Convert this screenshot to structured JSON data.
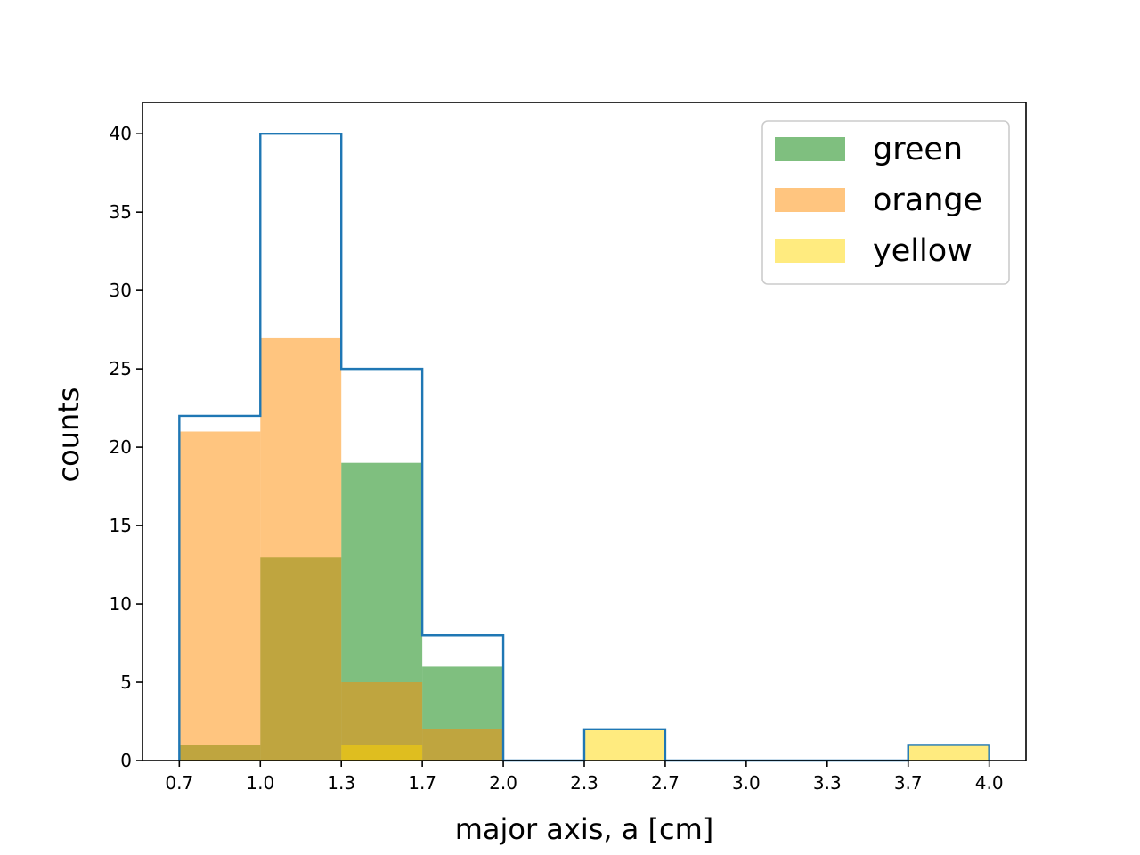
{
  "chart_data": {
    "type": "bar",
    "xlabel": "major axis, a [cm]",
    "ylabel": "counts",
    "xlim": [
      0.55,
      4.15
    ],
    "ylim": [
      0,
      42
    ],
    "x_ticks": [
      "0.7",
      "1.0",
      "1.3",
      "1.7",
      "2.0",
      "2.3",
      "2.7",
      "3.0",
      "3.3",
      "3.7",
      "4.0"
    ],
    "y_ticks": [
      "0",
      "5",
      "10",
      "15",
      "20",
      "25",
      "30",
      "35",
      "40"
    ],
    "bin_edges": [
      0.7,
      1.03,
      1.36,
      1.69,
      2.02,
      2.35,
      2.68,
      3.01,
      3.34,
      3.67,
      4.0
    ],
    "grid": false,
    "legend_position": "top-right",
    "series": [
      {
        "name": "green",
        "color": "#008000",
        "opacity": 0.5,
        "values": [
          1,
          13,
          19,
          6,
          0,
          0,
          0,
          0,
          0,
          0
        ]
      },
      {
        "name": "orange",
        "color": "#ff8c00",
        "opacity": 0.5,
        "values": [
          21,
          27,
          5,
          2,
          0,
          0,
          0,
          0,
          0,
          0
        ]
      },
      {
        "name": "yellow",
        "color": "#ffd700",
        "opacity": 0.5,
        "values": [
          0,
          0,
          1,
          0,
          0,
          2,
          0,
          0,
          0,
          1
        ]
      }
    ],
    "total_outline": {
      "color": "#1f77b4",
      "values": [
        22,
        40,
        25,
        8,
        0,
        2,
        0,
        0,
        0,
        1
      ]
    }
  }
}
